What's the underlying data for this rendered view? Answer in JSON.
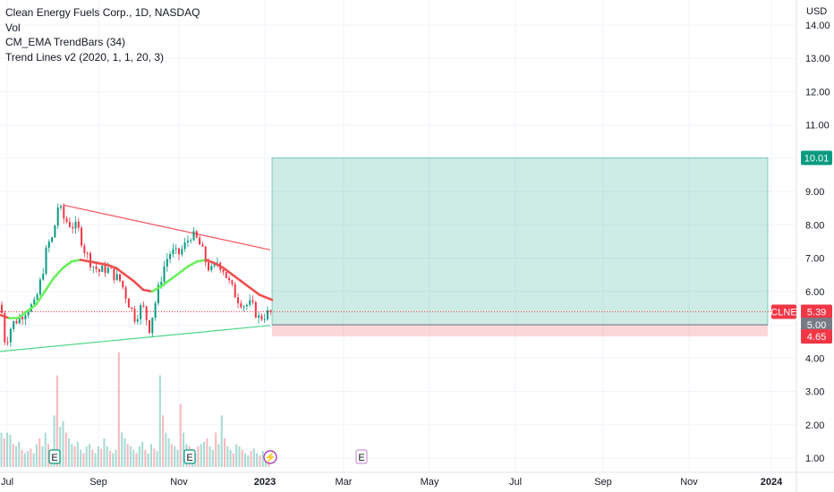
{
  "legend": {
    "title": "Clean Energy Fuels Corp., 1D, NASDAQ",
    "vol": "Vol",
    "indicator1": "CM_EMA TrendBars (34)",
    "indicator2": "Trend Lines v2 (2020, 1, 1, 20, 3)"
  },
  "chart_data": {
    "type": "candlestick",
    "x_tick_labels": [
      "Jul",
      "Sep",
      "Nov",
      "2023",
      "Mar",
      "May",
      "Jul",
      "Sep",
      "Nov",
      "2024"
    ],
    "y_unit": "USD",
    "y_tick_labels": [
      "1.00",
      "2.00",
      "3.00",
      "4.00",
      "5.00",
      "6.00",
      "7.00",
      "8.00",
      "9.00",
      "10.00",
      "11.00",
      "12.00",
      "13.00",
      "14.00"
    ],
    "ylim": [
      0.6,
      14.4
    ],
    "price_path": [
      [
        0,
        5.6
      ],
      [
        5,
        4.4
      ],
      [
        12,
        5.0
      ],
      [
        20,
        5.2
      ],
      [
        30,
        5.5
      ],
      [
        38,
        5.6
      ],
      [
        46,
        6.5
      ],
      [
        52,
        7.4
      ],
      [
        58,
        7.6
      ],
      [
        64,
        8.6
      ],
      [
        70,
        8.2
      ],
      [
        78,
        8.0
      ],
      [
        86,
        7.9
      ],
      [
        94,
        7.2
      ],
      [
        102,
        6.8
      ],
      [
        110,
        6.6
      ],
      [
        118,
        6.7
      ],
      [
        126,
        6.5
      ],
      [
        134,
        6.3
      ],
      [
        142,
        5.7
      ],
      [
        150,
        5.2
      ],
      [
        158,
        5.6
      ],
      [
        166,
        4.9
      ],
      [
        172,
        5.6
      ],
      [
        178,
        6.3
      ],
      [
        184,
        6.9
      ],
      [
        190,
        7.2
      ],
      [
        198,
        7.1
      ],
      [
        206,
        7.4
      ],
      [
        212,
        7.7
      ],
      [
        218,
        7.6
      ],
      [
        224,
        7.3
      ],
      [
        230,
        6.8
      ],
      [
        236,
        6.6
      ],
      [
        242,
        6.9
      ],
      [
        248,
        6.7
      ],
      [
        256,
        6.2
      ],
      [
        264,
        5.8
      ],
      [
        272,
        5.6
      ],
      [
        280,
        5.6
      ],
      [
        288,
        5.2
      ],
      [
        296,
        5.3
      ],
      [
        302,
        5.4
      ]
    ],
    "ema_path": [
      [
        0,
        5.3
      ],
      [
        10,
        5.2
      ],
      [
        20,
        5.2
      ],
      [
        30,
        5.4
      ],
      [
        40,
        5.6
      ],
      [
        50,
        6.0
      ],
      [
        60,
        6.4
      ],
      [
        70,
        6.7
      ],
      [
        80,
        6.9
      ],
      [
        90,
        6.95
      ],
      [
        100,
        6.9
      ],
      [
        110,
        6.85
      ],
      [
        120,
        6.8
      ],
      [
        130,
        6.7
      ],
      [
        140,
        6.5
      ],
      [
        150,
        6.3
      ],
      [
        160,
        6.05
      ],
      [
        170,
        6.0
      ],
      [
        180,
        6.15
      ],
      [
        190,
        6.35
      ],
      [
        200,
        6.55
      ],
      [
        210,
        6.75
      ],
      [
        220,
        6.9
      ],
      [
        230,
        6.95
      ],
      [
        240,
        6.85
      ],
      [
        250,
        6.7
      ],
      [
        260,
        6.5
      ],
      [
        270,
        6.3
      ],
      [
        280,
        6.1
      ],
      [
        290,
        5.9
      ],
      [
        304,
        5.75
      ]
    ],
    "volume_bars_relative": [
      0.3,
      0.25,
      0.3,
      0.28,
      0.2,
      0.18,
      0.22,
      0.15,
      0.12,
      0.14,
      0.16,
      0.12,
      0.2,
      0.25,
      0.18,
      0.3,
      0.2,
      0.15,
      0.45,
      0.8,
      0.35,
      0.4,
      0.3,
      0.25,
      0.2,
      0.18,
      0.22,
      0.15,
      0.12,
      0.18,
      0.2,
      0.15,
      0.12,
      0.18,
      0.16,
      0.25,
      0.18,
      0.14,
      0.12,
      0.15,
      1.0,
      0.3,
      0.25,
      0.2,
      0.18,
      0.15,
      0.12,
      0.18,
      0.22,
      0.15,
      0.12,
      0.2,
      0.16,
      0.14,
      0.8,
      0.45,
      0.3,
      0.25,
      0.2,
      0.18,
      0.15,
      0.55,
      0.3,
      0.2,
      0.18,
      0.15,
      0.12,
      0.18,
      0.2,
      0.22,
      0.25,
      0.18,
      0.15,
      0.3,
      0.2,
      0.45,
      0.25,
      0.18,
      0.15,
      0.12,
      0.2,
      0.18,
      0.15,
      0.12,
      0.1,
      0.14,
      0.16,
      0.12,
      0.1,
      0.14,
      0.12,
      0.1
    ],
    "resistance_line": [
      [
        70,
        8.6
      ],
      [
        302,
        7.25
      ]
    ],
    "support_line": [
      [
        0,
        4.2
      ],
      [
        302,
        4.98
      ]
    ],
    "long_position": {
      "entry": 5.0,
      "target": 10.01,
      "stop": 4.65,
      "x_start": 304,
      "x_end": 858
    },
    "current_price": 5.39,
    "price_tags": [
      {
        "label": "10.01",
        "value": 10.01,
        "color": "#089981"
      },
      {
        "label": "5.39",
        "value": 5.39,
        "color": "#f23645",
        "symbol": "CLNE"
      },
      {
        "label": "5.00",
        "value": 5.0,
        "color": "#787b86"
      },
      {
        "label": "4.65",
        "value": 4.65,
        "color": "#f23645"
      }
    ],
    "event_markers": [
      {
        "label": "E",
        "x": 61,
        "color": "#089981"
      },
      {
        "label": "E",
        "x": 212,
        "color": "#089981"
      },
      {
        "label": "⚡",
        "x": 302,
        "color": "#9c27b0"
      },
      {
        "label": "E",
        "x": 404,
        "color": "#ce93d8"
      }
    ]
  }
}
